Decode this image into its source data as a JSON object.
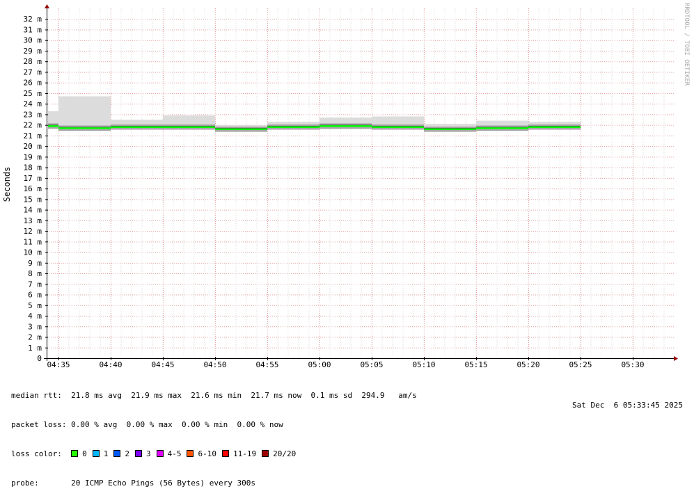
{
  "chart_data": {
    "type": "line",
    "ylabel": "Seconds",
    "y_unit_suffix": "m",
    "ylim": [
      0,
      33
    ],
    "y_ticks": [
      "0",
      "1 m",
      "2 m",
      "3 m",
      "4 m",
      "5 m",
      "6 m",
      "7 m",
      "8 m",
      "9 m",
      "10 m",
      "11 m",
      "12 m",
      "13 m",
      "14 m",
      "15 m",
      "16 m",
      "17 m",
      "18 m",
      "19 m",
      "20 m",
      "21 m",
      "22 m",
      "23 m",
      "24 m",
      "25 m",
      "26 m",
      "27 m",
      "28 m",
      "29 m",
      "30 m",
      "31 m",
      "32 m"
    ],
    "x_ticks": [
      "04:35",
      "04:40",
      "04:45",
      "04:50",
      "04:55",
      "05:00",
      "05:05",
      "05:10",
      "05:15",
      "05:20",
      "05:25",
      "05:30"
    ],
    "grid": true,
    "watermark": "RRDTOOL / TOBI OETIKER",
    "series": [
      {
        "name": "median rtt",
        "color": "#00ff00",
        "intervals": [
          {
            "start": "04:34",
            "end": "04:35",
            "median": 21.9,
            "min": 21.7,
            "max": 23.3
          },
          {
            "start": "04:35",
            "end": "04:40",
            "median": 21.7,
            "min": 21.5,
            "max": 24.7
          },
          {
            "start": "04:40",
            "end": "04:45",
            "median": 21.8,
            "min": 21.6,
            "max": 22.5
          },
          {
            "start": "04:45",
            "end": "04:50",
            "median": 21.8,
            "min": 21.6,
            "max": 22.9
          },
          {
            "start": "04:50",
            "end": "04:55",
            "median": 21.6,
            "min": 21.5,
            "max": 22.0
          },
          {
            "start": "04:55",
            "end": "05:00",
            "median": 21.8,
            "min": 21.7,
            "max": 22.3
          },
          {
            "start": "05:00",
            "end": "05:05",
            "median": 21.9,
            "min": 21.6,
            "max": 22.7
          },
          {
            "start": "05:05",
            "end": "05:10",
            "median": 21.8,
            "min": 21.6,
            "max": 22.8
          },
          {
            "start": "05:10",
            "end": "05:15",
            "median": 21.6,
            "min": 21.4,
            "max": 22.1
          },
          {
            "start": "05:15",
            "end": "05:20",
            "median": 21.7,
            "min": 21.5,
            "max": 22.4
          },
          {
            "start": "05:20",
            "end": "05:25",
            "median": 21.8,
            "min": 21.6,
            "max": 22.3
          }
        ]
      }
    ]
  },
  "legend": {
    "median_rtt_label": "median rtt:",
    "median_rtt_values": "21.8 ms avg  21.9 ms max  21.6 ms min  21.7 ms now  0.1 ms sd  294.9   am/s",
    "packet_loss_label": "packet loss:",
    "packet_loss_values": "0.00 % avg  0.00 % max  0.00 % min  0.00 % now",
    "loss_color_label": "loss color:",
    "loss_colors": [
      {
        "label": "0",
        "color": "#26ff00"
      },
      {
        "label": "1",
        "color": "#00b8ff"
      },
      {
        "label": "2",
        "color": "#0059ff"
      },
      {
        "label": "3",
        "color": "#7e00ff"
      },
      {
        "label": "4-5",
        "color": "#dd00ff"
      },
      {
        "label": "6-10",
        "color": "#ff5500"
      },
      {
        "label": "11-19",
        "color": "#ff0000"
      },
      {
        "label": "20/20",
        "color": "#a10000"
      }
    ],
    "probe_label": "probe:",
    "probe_value": "20 ICMP Echo Pings (56 Bytes) every 300s",
    "timestamp": "Sat Dec  6 05:33:45 2025"
  }
}
